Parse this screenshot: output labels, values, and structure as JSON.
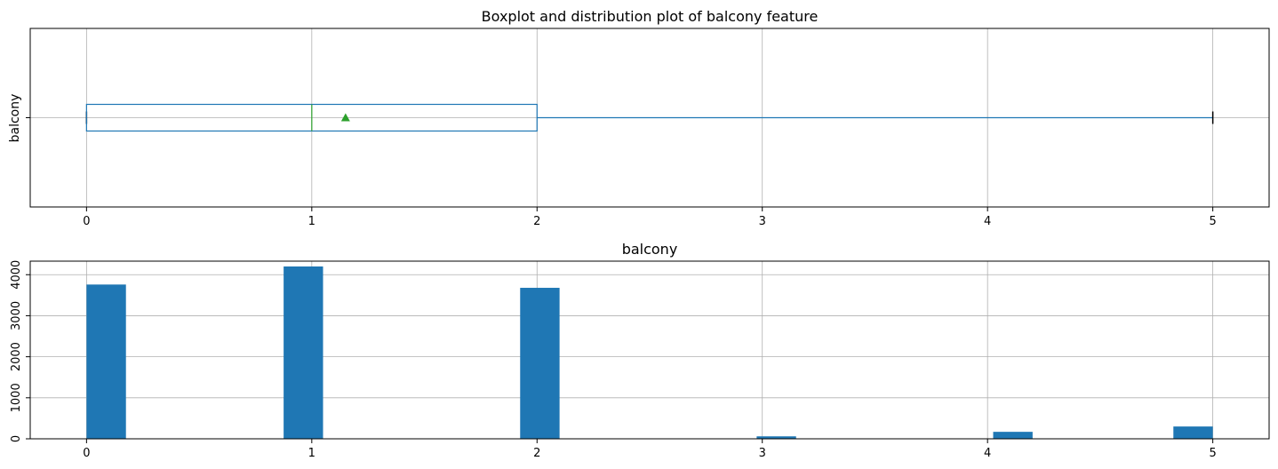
{
  "chart_data": [
    {
      "type": "box",
      "title": "Boxplot and distribution plot of balcony feature",
      "ylabel": "balcony",
      "xlim": [
        -0.25,
        5.25
      ],
      "xticks": [
        "0",
        "1",
        "2",
        "3",
        "4",
        "5"
      ],
      "grid": true,
      "box": {
        "min": 0,
        "q1": 0,
        "median": 1,
        "q3": 2,
        "max": 5,
        "mean": 1.15,
        "color": "#1f77b4",
        "median_color": "#2ca02c",
        "mean_marker_color": "#2ca02c"
      }
    },
    {
      "type": "bar",
      "title": "balcony",
      "xlim": [
        -0.25,
        5.25
      ],
      "ylim": [
        0,
        4330
      ],
      "xticks": [
        "0",
        "1",
        "2",
        "3",
        "4",
        "5"
      ],
      "yticks": [
        "0",
        "1000",
        "2000",
        "3000",
        "4000"
      ],
      "grid": true,
      "color": "#1f77b4",
      "bins": [
        {
          "x0": 0.0,
          "x1": 0.175,
          "value": 3760
        },
        {
          "x0": 0.875,
          "x1": 1.05,
          "value": 4200
        },
        {
          "x0": 1.925,
          "x1": 2.1,
          "value": 3680
        },
        {
          "x0": 2.975,
          "x1": 3.15,
          "value": 60
        },
        {
          "x0": 4.025,
          "x1": 4.2,
          "value": 170
        },
        {
          "x0": 4.825,
          "x1": 5.0,
          "value": 300
        }
      ]
    }
  ]
}
